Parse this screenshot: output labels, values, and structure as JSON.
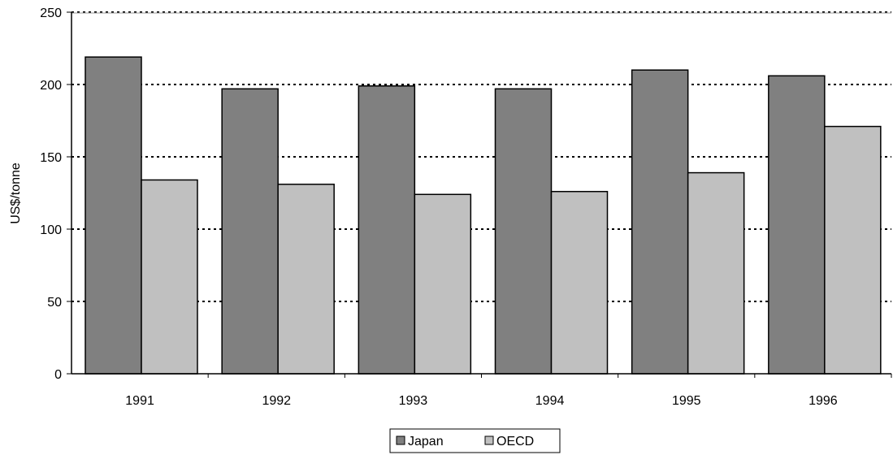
{
  "chart_data": {
    "type": "bar",
    "categories": [
      "1991",
      "1992",
      "1993",
      "1994",
      "1995",
      "1996"
    ],
    "series": [
      {
        "name": "Japan",
        "values": [
          219,
          197,
          199,
          197,
          210,
          206
        ],
        "color": "#808080"
      },
      {
        "name": "OECD",
        "values": [
          134,
          131,
          124,
          126,
          139,
          171
        ],
        "color": "#c0c0c0"
      }
    ],
    "xlabel": "",
    "ylabel": "US$/tonne",
    "ylim": [
      0,
      250
    ],
    "yticks": [
      "0",
      "50",
      "100",
      "150",
      "200",
      "250"
    ],
    "grid": true,
    "legend_position": "bottom-center"
  }
}
